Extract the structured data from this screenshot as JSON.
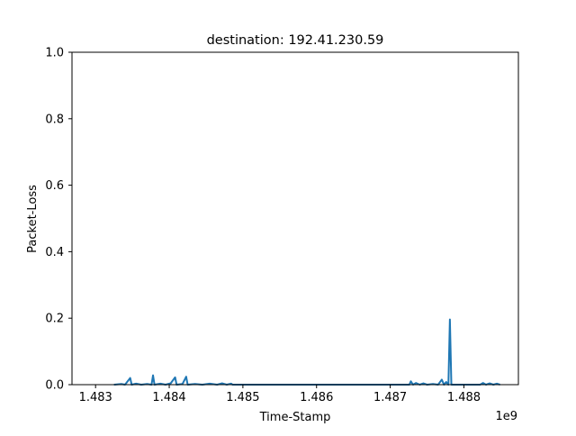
{
  "chart_data": {
    "type": "line",
    "title": "destination: 192.41.230.59",
    "xlabel": "Time-Stamp",
    "ylabel": "Packet-Loss",
    "x_offset_label": "1e9",
    "xlim": [
      1.48268,
      1.48874
    ],
    "ylim": [
      0.0,
      1.0
    ],
    "x_ticks": [
      1.483,
      1.484,
      1.485,
      1.486,
      1.487,
      1.488
    ],
    "x_tick_labels": [
      "1.483",
      "1.484",
      "1.485",
      "1.486",
      "1.487",
      "1.488"
    ],
    "y_ticks": [
      0.0,
      0.2,
      0.4,
      0.6,
      0.8,
      1.0
    ],
    "y_tick_labels": [
      "0.0",
      "0.2",
      "0.4",
      "0.6",
      "0.8",
      "1.0"
    ],
    "grid": false,
    "legend": "none",
    "series": [
      {
        "color": "#1f77b4",
        "points": [
          [
            1.48325,
            0.0
          ],
          [
            1.48335,
            0.002
          ],
          [
            1.4834,
            0.0
          ],
          [
            1.48347,
            0.02
          ],
          [
            1.48349,
            0.0
          ],
          [
            1.48355,
            0.003
          ],
          [
            1.48362,
            0.0
          ],
          [
            1.4837,
            0.002
          ],
          [
            1.48376,
            0.0
          ],
          [
            1.48378,
            0.028
          ],
          [
            1.4838,
            0.0
          ],
          [
            1.48388,
            0.003
          ],
          [
            1.48395,
            0.0
          ],
          [
            1.48402,
            0.004
          ],
          [
            1.48408,
            0.022
          ],
          [
            1.4841,
            0.0
          ],
          [
            1.48418,
            0.002
          ],
          [
            1.48423,
            0.024
          ],
          [
            1.48425,
            0.0
          ],
          [
            1.48435,
            0.002
          ],
          [
            1.48445,
            0.0
          ],
          [
            1.48455,
            0.003
          ],
          [
            1.48465,
            0.0
          ],
          [
            1.48472,
            0.004
          ],
          [
            1.48478,
            0.0
          ],
          [
            1.48484,
            0.003
          ],
          [
            1.48486,
            0.0
          ],
          [
            1.48726,
            0.0
          ],
          [
            1.48728,
            0.01
          ],
          [
            1.48731,
            0.0
          ],
          [
            1.48735,
            0.005
          ],
          [
            1.4874,
            0.0
          ],
          [
            1.48745,
            0.004
          ],
          [
            1.4875,
            0.0
          ],
          [
            1.48758,
            0.002
          ],
          [
            1.48765,
            0.0
          ],
          [
            1.4877,
            0.015
          ],
          [
            1.48773,
            0.0
          ],
          [
            1.48776,
            0.008
          ],
          [
            1.48779,
            0.0
          ],
          [
            1.48781,
            0.196
          ],
          [
            1.48783,
            0.0
          ],
          [
            1.48822,
            0.0
          ],
          [
            1.48826,
            0.005
          ],
          [
            1.4883,
            0.0
          ],
          [
            1.48835,
            0.004
          ],
          [
            1.4884,
            0.0
          ],
          [
            1.48845,
            0.003
          ],
          [
            1.48849,
            0.0
          ]
        ]
      }
    ]
  }
}
